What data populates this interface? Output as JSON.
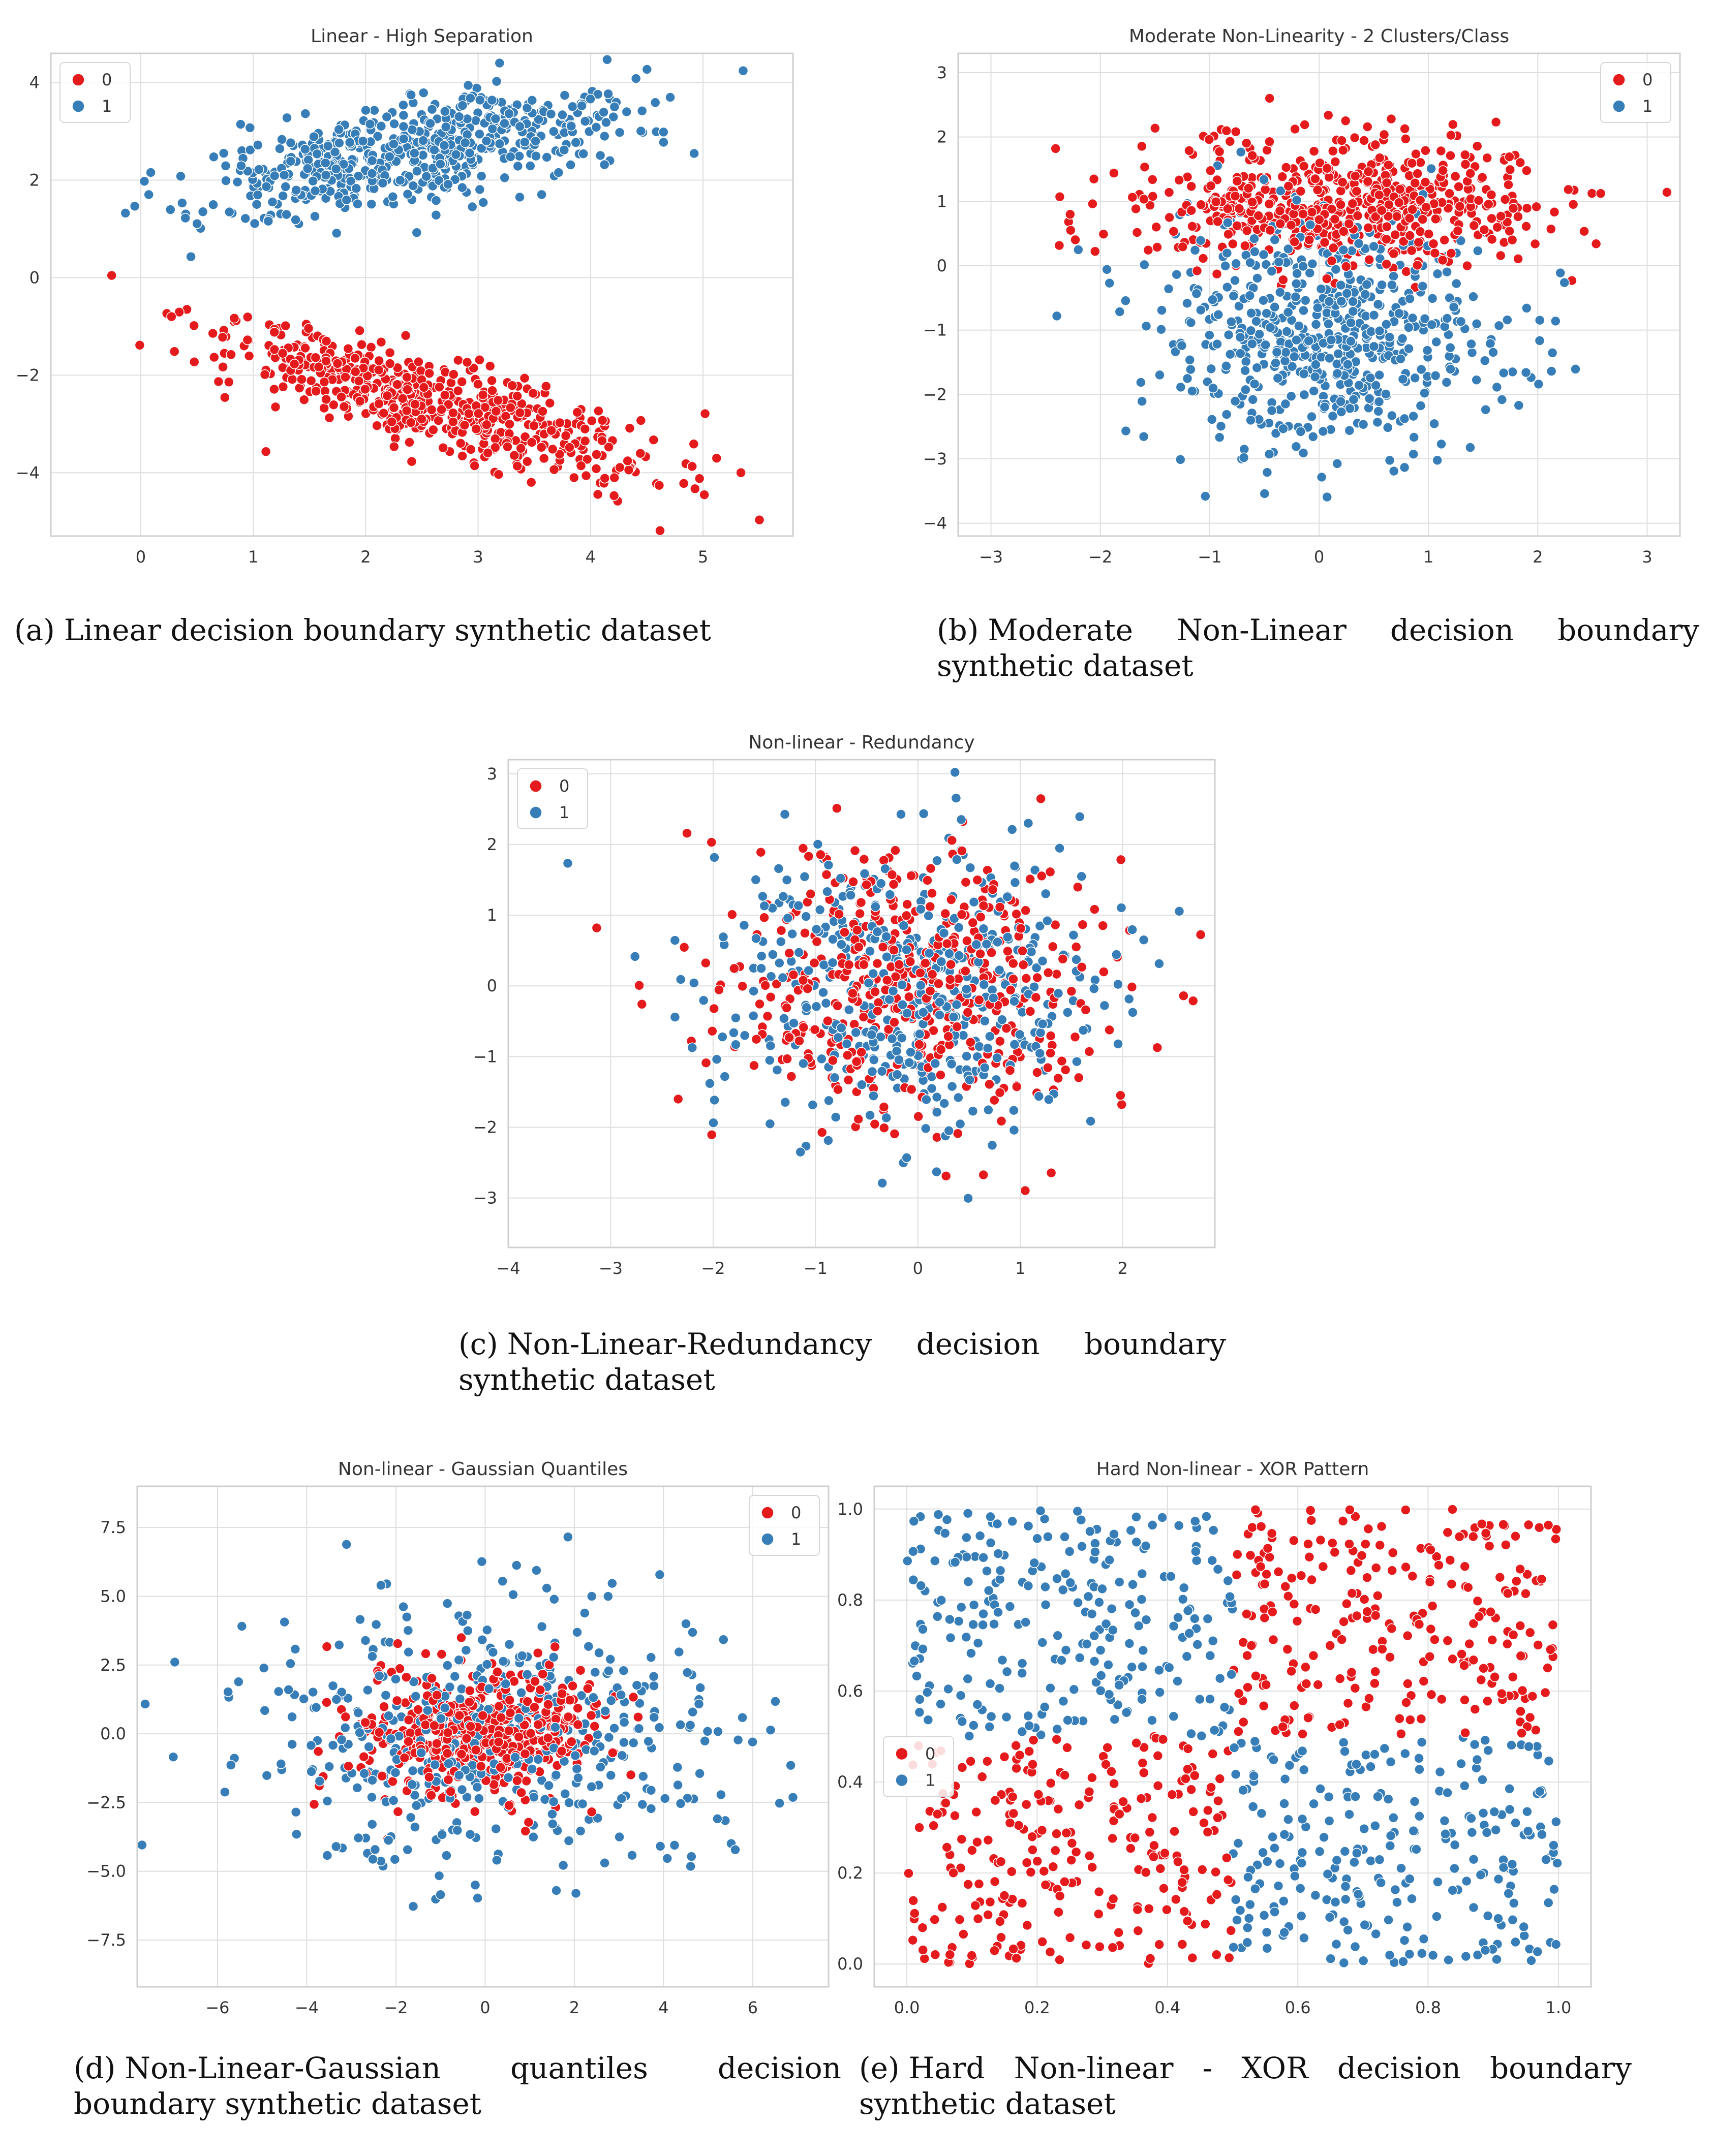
{
  "legend": {
    "labels": [
      "0",
      "1"
    ],
    "colors": [
      "#e41a1c",
      "#377eb8"
    ]
  },
  "chart_data": [
    {
      "id": "a",
      "type": "scatter",
      "title": "Linear - High Separation",
      "xlabel": "",
      "ylabel": "",
      "xlim": [
        -0.8,
        5.8
      ],
      "ylim": [
        -5.3,
        4.6
      ],
      "xticks": [
        0,
        1,
        2,
        3,
        4,
        5
      ],
      "yticks": [
        -4,
        -2,
        0,
        2,
        4
      ],
      "grid": true,
      "legend_position": "top-left",
      "caption_label": "(a)",
      "caption_text": "Linear decision boundary synthetic dataset",
      "series": [
        {
          "name": "0",
          "n": 600,
          "kind": "linear",
          "cx": 2.6,
          "cy": -2.6,
          "sx": 1.0,
          "sy": 0.45,
          "slope": -0.62
        },
        {
          "name": "1",
          "n": 600,
          "kind": "linear",
          "cx": 2.5,
          "cy": 2.6,
          "sx": 1.0,
          "sy": 0.5,
          "slope": 0.42
        }
      ]
    },
    {
      "id": "b",
      "type": "scatter",
      "title": "Moderate Non-Linearity - 2 Clusters/Class",
      "xlabel": "",
      "ylabel": "",
      "xlim": [
        -3.3,
        3.3
      ],
      "ylim": [
        -4.2,
        3.3
      ],
      "xticks": [
        -3,
        -2,
        -1,
        0,
        1,
        2,
        3
      ],
      "yticks": [
        -4,
        -3,
        -2,
        -1,
        0,
        1,
        2,
        3
      ],
      "grid": true,
      "legend_position": "top-right",
      "caption_label": "(b)",
      "caption_text": "Moderate Non-Linear decision boundary synthetic dataset",
      "series": [
        {
          "name": "0",
          "n": 600,
          "kind": "gauss",
          "cx": 0.2,
          "cy": 0.95,
          "sx": 0.95,
          "sy": 0.5,
          "slope": 0
        },
        {
          "name": "1",
          "n": 600,
          "kind": "gauss",
          "cx": 0.1,
          "cy": -1.1,
          "sx": 0.8,
          "sy": 0.9,
          "slope": 0
        }
      ]
    },
    {
      "id": "c",
      "type": "scatter",
      "title": "Non-linear - Redundancy",
      "xlabel": "",
      "ylabel": "",
      "xlim": [
        -4.0,
        2.9
      ],
      "ylim": [
        -3.7,
        3.2
      ],
      "xticks": [
        -4,
        -3,
        -2,
        -1,
        0,
        1,
        2
      ],
      "yticks": [
        -3,
        -2,
        -1,
        0,
        1,
        2,
        3
      ],
      "grid": true,
      "legend_position": "top-left",
      "caption_label": "(c)",
      "caption_text": "Non-Linear-Redundancy decision boundary synthetic dataset",
      "series": [
        {
          "name": "0",
          "n": 500,
          "kind": "gauss",
          "cx": 0.0,
          "cy": 0.0,
          "sx": 0.95,
          "sy": 1.0,
          "slope": 0
        },
        {
          "name": "1",
          "n": 500,
          "kind": "gauss",
          "cx": 0.0,
          "cy": 0.0,
          "sx": 0.95,
          "sy": 1.0,
          "slope": 0
        }
      ]
    },
    {
      "id": "d",
      "type": "scatter",
      "title": "Non-linear - Gaussian Quantiles",
      "xlabel": "",
      "ylabel": "",
      "xlim": [
        -7.8,
        7.7
      ],
      "ylim": [
        -9.2,
        9.0
      ],
      "xticks": [
        -6,
        -4,
        -2,
        0,
        2,
        4,
        6
      ],
      "yticks": [
        -7.5,
        -5.0,
        -2.5,
        0.0,
        2.5,
        5.0,
        7.5
      ],
      "grid": true,
      "legend_position": "top-right",
      "caption_label": "(d)",
      "caption_text": "Non-Linear-Gaussian quantiles decision boundary synthetic dataset",
      "series": [
        {
          "name": "0",
          "n": 500,
          "kind": "gauss",
          "cx": 0.0,
          "cy": 0.0,
          "sx": 1.3,
          "sy": 1.2,
          "slope": 0
        },
        {
          "name": "1",
          "n": 500,
          "kind": "ring",
          "cx": 0.0,
          "cy": 0.0,
          "sx": 2.6,
          "sy": 2.5,
          "slope": 0
        }
      ]
    },
    {
      "id": "e",
      "type": "scatter",
      "title": "Hard Non-linear - XOR Pattern",
      "xlabel": "",
      "ylabel": "",
      "xlim": [
        -0.05,
        1.05
      ],
      "ylim": [
        -0.05,
        1.05
      ],
      "xticks": [
        0.0,
        0.2,
        0.4,
        0.6,
        0.8,
        1.0
      ],
      "yticks": [
        0.0,
        0.2,
        0.4,
        0.6,
        0.8,
        1.0
      ],
      "grid": true,
      "legend_position": "center-left",
      "caption_label": "(e)",
      "caption_text": "Hard Non-linear - XOR decision boundary synthetic dataset",
      "series": [
        {
          "name": "0",
          "n": 500,
          "kind": "xor",
          "quadrants": "top-right,bottom-left"
        },
        {
          "name": "1",
          "n": 500,
          "kind": "xor",
          "quadrants": "top-left,bottom-right"
        }
      ]
    }
  ]
}
